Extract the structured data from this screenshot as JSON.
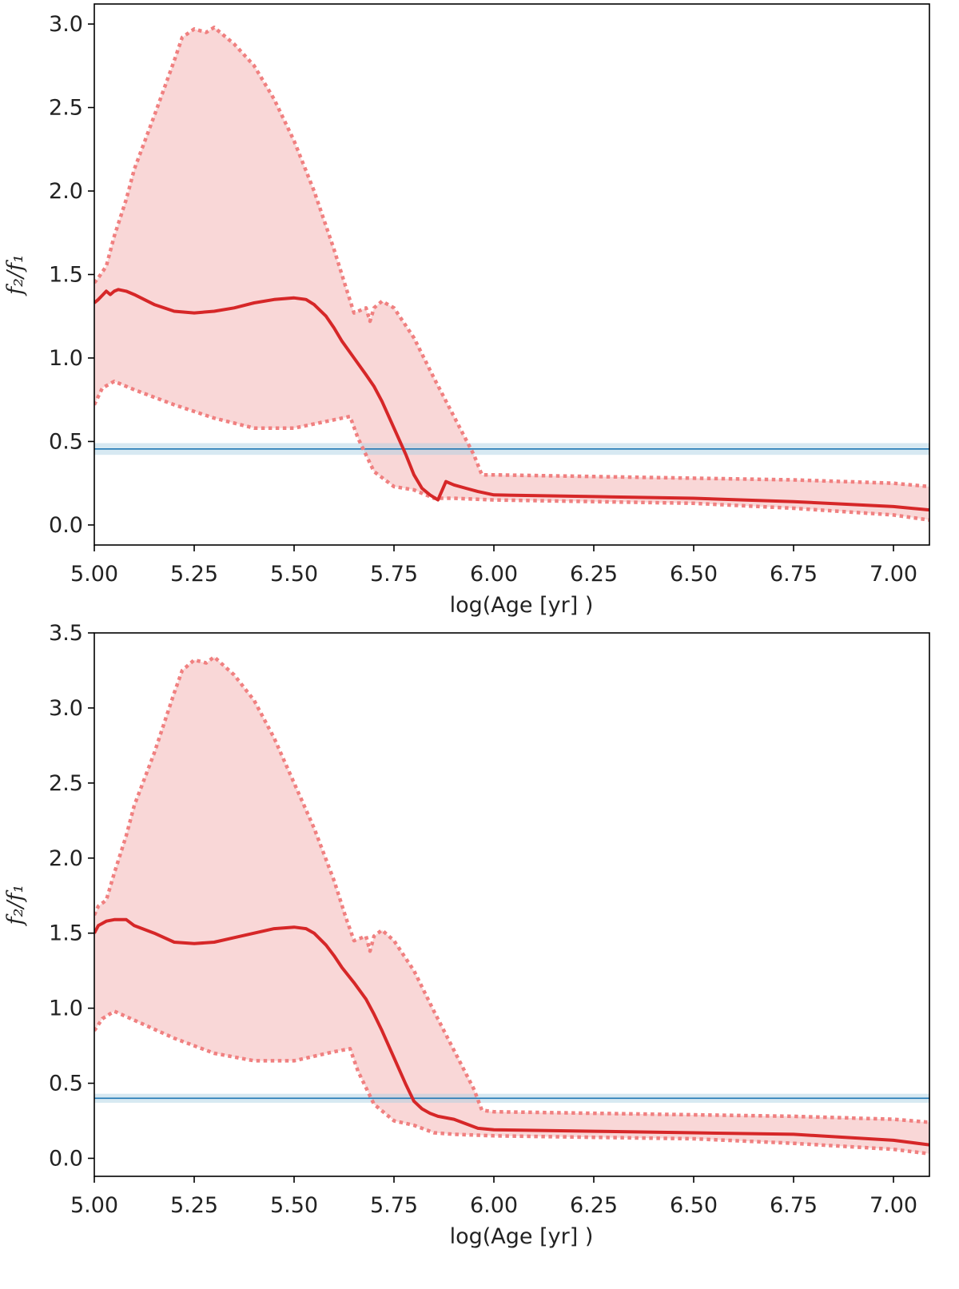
{
  "chart_data": [
    {
      "type": "line",
      "title": "",
      "xlabel": "log(Age [yr] )",
      "ylabel": "f₂/f₁",
      "xlim": [
        5.0,
        7.09
      ],
      "ylim": [
        -0.12,
        3.12
      ],
      "xticks": [
        "5.00",
        "5.25",
        "5.50",
        "5.75",
        "6.00",
        "6.25",
        "6.50",
        "6.75",
        "7.00"
      ],
      "yticks": [
        "0.0",
        "0.5",
        "1.0",
        "1.5",
        "2.0",
        "2.5",
        "3.0"
      ],
      "grid": false,
      "legend": "none",
      "series": [
        {
          "role": "median",
          "style": "solid",
          "color": "#d62728",
          "x": [
            5.0,
            5.01,
            5.03,
            5.04,
            5.05,
            5.06,
            5.08,
            5.1,
            5.15,
            5.2,
            5.25,
            5.3,
            5.35,
            5.4,
            5.45,
            5.5,
            5.53,
            5.55,
            5.58,
            5.6,
            5.62,
            5.65,
            5.68,
            5.7,
            5.72,
            5.75,
            5.78,
            5.8,
            5.82,
            5.84,
            5.86,
            5.88,
            5.9,
            5.93,
            5.96,
            6.0,
            6.25,
            6.5,
            6.75,
            7.0,
            7.09
          ],
          "y": [
            1.33,
            1.35,
            1.4,
            1.38,
            1.4,
            1.41,
            1.4,
            1.38,
            1.32,
            1.28,
            1.27,
            1.28,
            1.3,
            1.33,
            1.35,
            1.36,
            1.35,
            1.32,
            1.25,
            1.18,
            1.1,
            1.0,
            0.9,
            0.83,
            0.74,
            0.58,
            0.42,
            0.3,
            0.22,
            0.18,
            0.15,
            0.26,
            0.24,
            0.22,
            0.2,
            0.18,
            0.17,
            0.16,
            0.14,
            0.11,
            0.09
          ]
        },
        {
          "role": "upper-bound",
          "style": "dotted",
          "color": "#f08080",
          "x": [
            5.0,
            5.01,
            5.03,
            5.05,
            5.08,
            5.1,
            5.15,
            5.2,
            5.22,
            5.25,
            5.28,
            5.3,
            5.35,
            5.4,
            5.45,
            5.5,
            5.55,
            5.6,
            5.63,
            5.65,
            5.68,
            5.69,
            5.7,
            5.72,
            5.75,
            5.8,
            5.85,
            5.9,
            5.95,
            5.97,
            6.0,
            6.25,
            6.5,
            6.75,
            7.0,
            7.09
          ],
          "y": [
            1.45,
            1.48,
            1.55,
            1.73,
            1.95,
            2.13,
            2.45,
            2.78,
            2.92,
            2.97,
            2.95,
            2.98,
            2.88,
            2.75,
            2.55,
            2.3,
            2.0,
            1.65,
            1.42,
            1.27,
            1.3,
            1.22,
            1.3,
            1.34,
            1.3,
            1.12,
            0.88,
            0.65,
            0.42,
            0.3,
            0.3,
            0.29,
            0.28,
            0.27,
            0.25,
            0.23
          ]
        },
        {
          "role": "lower-bound",
          "style": "dotted",
          "color": "#f08080",
          "x": [
            5.0,
            5.02,
            5.05,
            5.1,
            5.2,
            5.3,
            5.4,
            5.5,
            5.6,
            5.64,
            5.66,
            5.7,
            5.75,
            5.8,
            5.85,
            5.9,
            6.0,
            6.25,
            6.5,
            6.75,
            7.0,
            7.09
          ],
          "y": [
            0.72,
            0.82,
            0.86,
            0.81,
            0.72,
            0.64,
            0.58,
            0.58,
            0.63,
            0.65,
            0.52,
            0.32,
            0.23,
            0.21,
            0.16,
            0.16,
            0.15,
            0.14,
            0.13,
            0.1,
            0.06,
            0.03
          ]
        },
        {
          "role": "reference",
          "style": "solid",
          "color": "#1f77b4",
          "y": 0.455,
          "band": [
            0.42,
            0.49
          ]
        }
      ]
    },
    {
      "type": "line",
      "title": "",
      "xlabel": "log(Age [yr] )",
      "ylabel": "f₂/f₁",
      "xlim": [
        5.0,
        7.09
      ],
      "ylim": [
        -0.12,
        3.5
      ],
      "xticks": [
        "5.00",
        "5.25",
        "5.50",
        "5.75",
        "6.00",
        "6.25",
        "6.50",
        "6.75",
        "7.00"
      ],
      "yticks": [
        "0.0",
        "0.5",
        "1.0",
        "1.5",
        "2.0",
        "2.5",
        "3.0",
        "3.5"
      ],
      "grid": false,
      "legend": "none",
      "series": [
        {
          "role": "median",
          "style": "solid",
          "color": "#d62728",
          "x": [
            5.0,
            5.01,
            5.03,
            5.05,
            5.08,
            5.1,
            5.15,
            5.2,
            5.25,
            5.3,
            5.35,
            5.4,
            5.45,
            5.5,
            5.53,
            5.55,
            5.58,
            5.6,
            5.62,
            5.65,
            5.68,
            5.7,
            5.72,
            5.75,
            5.78,
            5.8,
            5.82,
            5.84,
            5.86,
            5.9,
            5.93,
            5.96,
            6.0,
            6.25,
            6.5,
            6.75,
            7.0,
            7.09
          ],
          "y": [
            1.5,
            1.55,
            1.58,
            1.59,
            1.59,
            1.55,
            1.5,
            1.44,
            1.43,
            1.44,
            1.47,
            1.5,
            1.53,
            1.54,
            1.53,
            1.5,
            1.42,
            1.35,
            1.27,
            1.17,
            1.06,
            0.96,
            0.85,
            0.67,
            0.49,
            0.38,
            0.33,
            0.3,
            0.28,
            0.26,
            0.23,
            0.2,
            0.19,
            0.18,
            0.17,
            0.16,
            0.12,
            0.09
          ]
        },
        {
          "role": "upper-bound",
          "style": "dotted",
          "color": "#f08080",
          "x": [
            5.0,
            5.01,
            5.03,
            5.05,
            5.08,
            5.1,
            5.15,
            5.2,
            5.22,
            5.25,
            5.28,
            5.3,
            5.35,
            5.4,
            5.45,
            5.5,
            5.55,
            5.6,
            5.63,
            5.65,
            5.68,
            5.69,
            5.7,
            5.72,
            5.75,
            5.8,
            5.85,
            5.9,
            5.95,
            5.97,
            6.0,
            6.25,
            6.5,
            6.75,
            7.0,
            7.09
          ],
          "y": [
            1.62,
            1.68,
            1.72,
            1.9,
            2.15,
            2.35,
            2.7,
            3.1,
            3.25,
            3.32,
            3.3,
            3.34,
            3.22,
            3.05,
            2.8,
            2.5,
            2.2,
            1.85,
            1.6,
            1.45,
            1.48,
            1.38,
            1.48,
            1.52,
            1.45,
            1.25,
            0.98,
            0.72,
            0.46,
            0.32,
            0.31,
            0.3,
            0.29,
            0.28,
            0.26,
            0.24
          ]
        },
        {
          "role": "lower-bound",
          "style": "dotted",
          "color": "#f08080",
          "x": [
            5.0,
            5.02,
            5.05,
            5.1,
            5.2,
            5.3,
            5.4,
            5.5,
            5.6,
            5.64,
            5.66,
            5.7,
            5.75,
            5.8,
            5.85,
            5.9,
            6.0,
            6.25,
            6.5,
            6.75,
            7.0,
            7.09
          ],
          "y": [
            0.85,
            0.93,
            0.98,
            0.92,
            0.8,
            0.7,
            0.65,
            0.65,
            0.71,
            0.73,
            0.58,
            0.36,
            0.25,
            0.22,
            0.17,
            0.16,
            0.15,
            0.14,
            0.13,
            0.1,
            0.06,
            0.03
          ]
        },
        {
          "role": "reference",
          "style": "solid",
          "color": "#1f77b4",
          "y": 0.4,
          "band": [
            0.37,
            0.43
          ]
        }
      ]
    }
  ]
}
